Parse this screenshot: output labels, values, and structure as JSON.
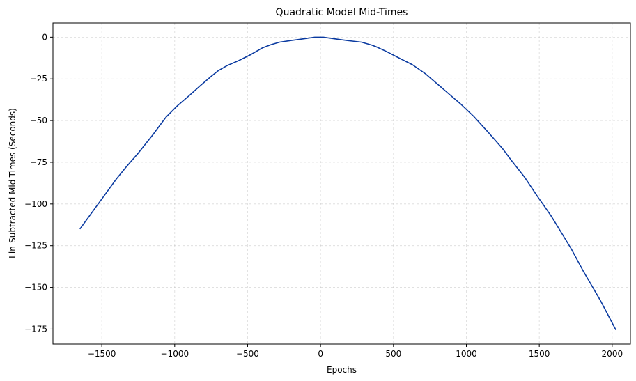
{
  "chart_data": {
    "type": "line",
    "title": "Quadratic Model Mid-Times",
    "xlabel": "Epochs",
    "ylabel": "Lin-Subtracted Mid-Times (Seconds)",
    "xlim": [
      -1835,
      2125
    ],
    "ylim": [
      -184,
      8.5
    ],
    "grid": true,
    "line_color": "#0a3aa0",
    "x_ticks": [
      -1500,
      -1000,
      -500,
      0,
      500,
      1000,
      1500,
      2000
    ],
    "x_tick_labels": [
      "−1500",
      "−1000",
      "−500",
      "0",
      "500",
      "1000",
      "1500",
      "2000"
    ],
    "y_ticks": [
      0,
      -25,
      -50,
      -75,
      -100,
      -125,
      -150,
      -175
    ],
    "y_tick_labels": [
      "0",
      "−25",
      "−50",
      "−75",
      "−100",
      "−125",
      "−150",
      "−175"
    ],
    "series": [
      {
        "x": [
          -1650,
          -1500,
          -1400,
          -1330,
          -1250,
          -1150,
          -1060,
          -980,
          -900,
          -830,
          -750,
          -700,
          -640,
          -560,
          -480,
          -400,
          -340,
          -280,
          -200,
          -120,
          -40,
          0,
          20,
          100,
          180,
          280,
          350,
          380,
          450,
          550,
          630,
          720,
          800,
          880,
          960,
          1050,
          1150,
          1250,
          1310,
          1400,
          1480,
          1580,
          1650,
          1720,
          1800,
          1920,
          2025
        ],
        "y": [
          -115,
          -97,
          -85,
          -77.5,
          -69.5,
          -58.5,
          -48,
          -41,
          -35,
          -29.5,
          -23.5,
          -20,
          -17,
          -14,
          -10.5,
          -6.5,
          -4.5,
          -3,
          -2,
          -1,
          0,
          0,
          0,
          -1,
          -2,
          -3,
          -4.7,
          -5.7,
          -8.5,
          -13,
          -16.5,
          -22,
          -28,
          -34,
          -40,
          -47.5,
          -57,
          -67,
          -74,
          -84,
          -94.5,
          -107,
          -117,
          -127,
          -140,
          -158,
          -175.5
        ]
      }
    ]
  }
}
